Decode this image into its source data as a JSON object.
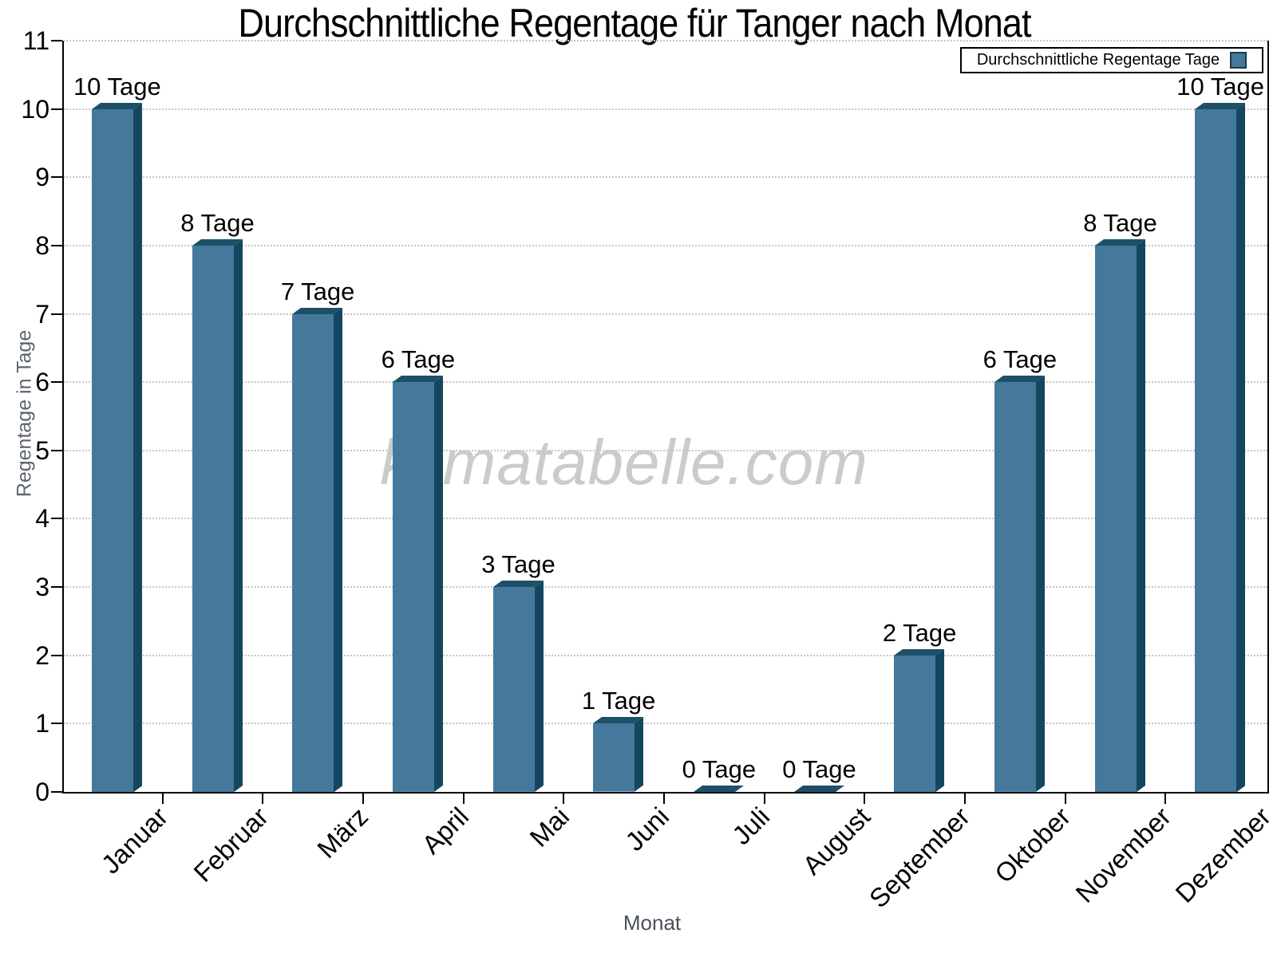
{
  "chart_data": {
    "type": "bar",
    "title": "Durchschnittliche Regentage für Tanger nach Monat",
    "xlabel": "Monat",
    "ylabel": "Regentage in Tage",
    "watermark": "klimatabelle.com",
    "legend_label": "Durchschnittliche Regentage Tage",
    "legend_position": "top-right",
    "categories": [
      "Januar",
      "Februar",
      "März",
      "April",
      "Mai",
      "Juni",
      "Juli",
      "August",
      "September",
      "Oktober",
      "November",
      "Dezember"
    ],
    "values": [
      10,
      8,
      7,
      6,
      3,
      1,
      0,
      0,
      2,
      6,
      8,
      10
    ],
    "value_label_suffix": "Tage",
    "value_labels": [
      "10 Tage",
      "8 Tage",
      "7 Tage",
      "6 Tage",
      "3 Tage",
      "1 Tage",
      "0 Tage",
      "0 Tage",
      "2 Tage",
      "6 Tage",
      "8 Tage",
      "10 Tage"
    ],
    "ylim": [
      0,
      11
    ],
    "yticks": [
      0,
      1,
      2,
      3,
      4,
      5,
      6,
      7,
      8,
      9,
      10,
      11
    ],
    "grid": "horizontal-dotted",
    "colors": {
      "bar_front": "#44799c",
      "bar_top": "#1d5068",
      "bar_side": "#15465f",
      "grid": "#c6c6c6",
      "axis": "#000000",
      "axis_title": "#5d6370",
      "watermark": "#cbcbcb"
    }
  }
}
